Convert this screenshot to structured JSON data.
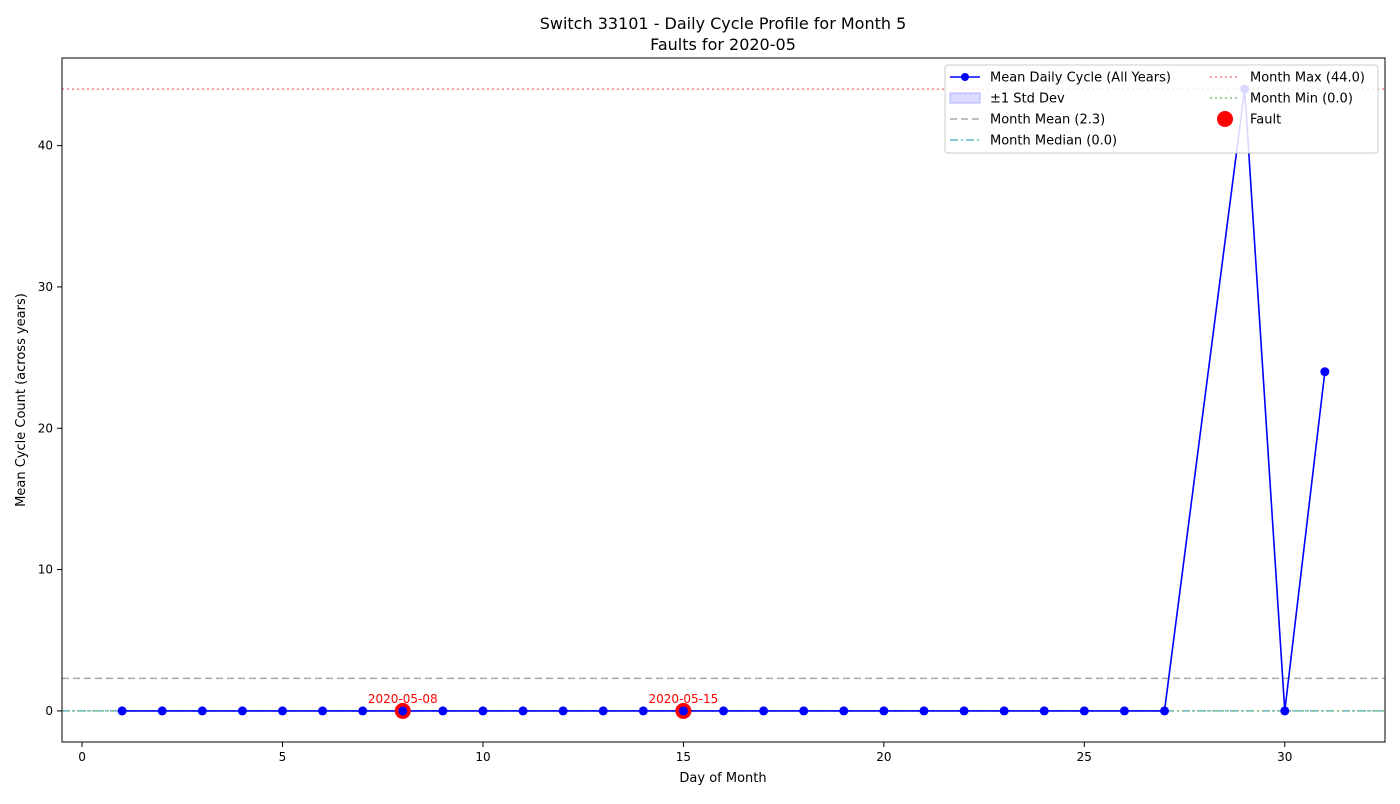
{
  "chart_data": {
    "type": "line",
    "title": "Switch 33101 - Daily Cycle Profile for Month 5",
    "subtitle": "Faults for 2020-05",
    "xlabel": "Day of Month",
    "ylabel": "Mean Cycle Count (across years)",
    "xlim": [
      -0.5,
      32.5
    ],
    "ylim": [
      -2.2,
      46.2
    ],
    "xticks": [
      0,
      5,
      10,
      15,
      20,
      25,
      30
    ],
    "yticks": [
      0,
      10,
      20,
      30,
      40
    ],
    "grid": false,
    "legend_position": "top-right",
    "series": [
      {
        "name": "Mean Daily Cycle (All Years)",
        "color": "#0000ff",
        "x": [
          1,
          2,
          3,
          4,
          5,
          6,
          7,
          8,
          9,
          10,
          11,
          12,
          13,
          14,
          15,
          16,
          17,
          18,
          19,
          20,
          21,
          22,
          23,
          24,
          25,
          26,
          27,
          29,
          30,
          31
        ],
        "y": [
          0,
          0,
          0,
          0,
          0,
          0,
          0,
          0,
          0,
          0,
          0,
          0,
          0,
          0,
          0,
          0,
          0,
          0,
          0,
          0,
          0,
          0,
          0,
          0,
          0,
          0,
          0,
          44,
          0,
          24
        ]
      }
    ],
    "std_band": {
      "name": "±1 Std Dev",
      "color": "#c8c8ff"
    },
    "reference_lines": [
      {
        "name": "Month Mean (2.3)",
        "value": 2.3,
        "color": "#a9a9a9",
        "style": "dashed"
      },
      {
        "name": "Month Median (0.0)",
        "value": 0.0,
        "color": "#5fb5c9",
        "style": "dashdot"
      },
      {
        "name": "Month Max (44.0)",
        "value": 44.0,
        "color": "#f08080",
        "style": "dotted"
      },
      {
        "name": "Month Min (0.0)",
        "value": 0.0,
        "color": "#7fbf7f",
        "style": "dotted"
      }
    ],
    "faults": {
      "name": "Fault",
      "color": "#ff0000",
      "points": [
        {
          "x": 8,
          "y": 0,
          "label": "2020-05-08"
        },
        {
          "x": 15,
          "y": 0,
          "label": "2020-05-15"
        }
      ]
    }
  }
}
